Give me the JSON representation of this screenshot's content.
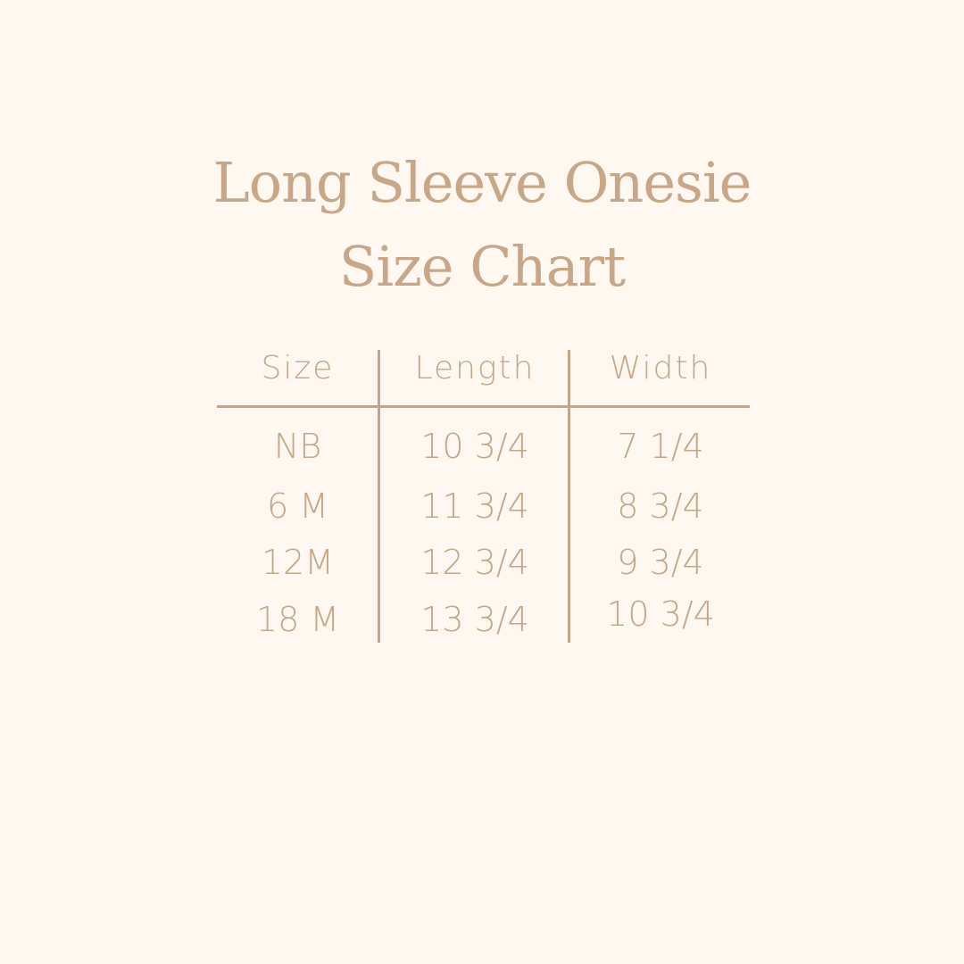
{
  "title": {
    "line1": "Long Sleeve Onesie",
    "line2": "Size Chart"
  },
  "table": {
    "headers": [
      "Size",
      "Length",
      "Width"
    ],
    "rows": [
      [
        "NB",
        "10 3/4",
        "7 1/4"
      ],
      [
        "6 M",
        "11 3/4",
        "8 3/4"
      ],
      [
        "12M",
        "12 3/4",
        "9 3/4"
      ],
      [
        "18 M",
        "13 3/4",
        "10 3/4"
      ]
    ]
  },
  "colors": {
    "background": "#fef8f0",
    "text": "#c4a688",
    "lines": "#bfa58f"
  }
}
